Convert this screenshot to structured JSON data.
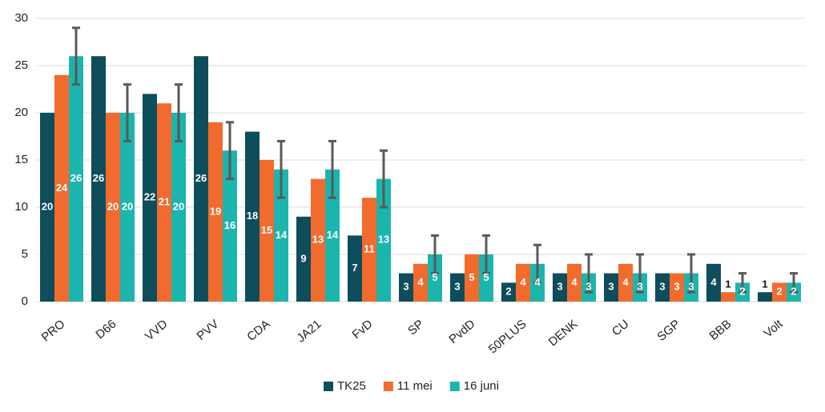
{
  "chart_data": {
    "type": "bar",
    "categories": [
      "PRO",
      "D66",
      "VVD",
      "PVV",
      "CDA",
      "JA21",
      "FvD",
      "SP",
      "PvdD",
      "50PLUS",
      "DENK",
      "CU",
      "SGP",
      "BBB",
      "Volt"
    ],
    "series": [
      {
        "name": "TK25",
        "color": "#0e4d5c",
        "values": [
          20,
          26,
          22,
          26,
          18,
          9,
          7,
          3,
          3,
          2,
          3,
          3,
          3,
          4,
          1
        ]
      },
      {
        "name": "11 mei",
        "color": "#f26b2e",
        "values": [
          24,
          20,
          21,
          19,
          15,
          13,
          11,
          4,
          5,
          4,
          4,
          4,
          3,
          1,
          2
        ]
      },
      {
        "name": "16 juni",
        "color": "#1bb5ad",
        "values": [
          26,
          20,
          20,
          16,
          14,
          14,
          13,
          5,
          5,
          4,
          3,
          3,
          3,
          2,
          2
        ],
        "errors": [
          3,
          3,
          3,
          3,
          3,
          3,
          3,
          2,
          2,
          2,
          2,
          2,
          2,
          1,
          1
        ]
      }
    ],
    "ylim": [
      0,
      30
    ],
    "yticks": [
      0,
      5,
      10,
      15,
      20,
      25,
      30
    ],
    "grid": true,
    "legend": "bottom"
  }
}
